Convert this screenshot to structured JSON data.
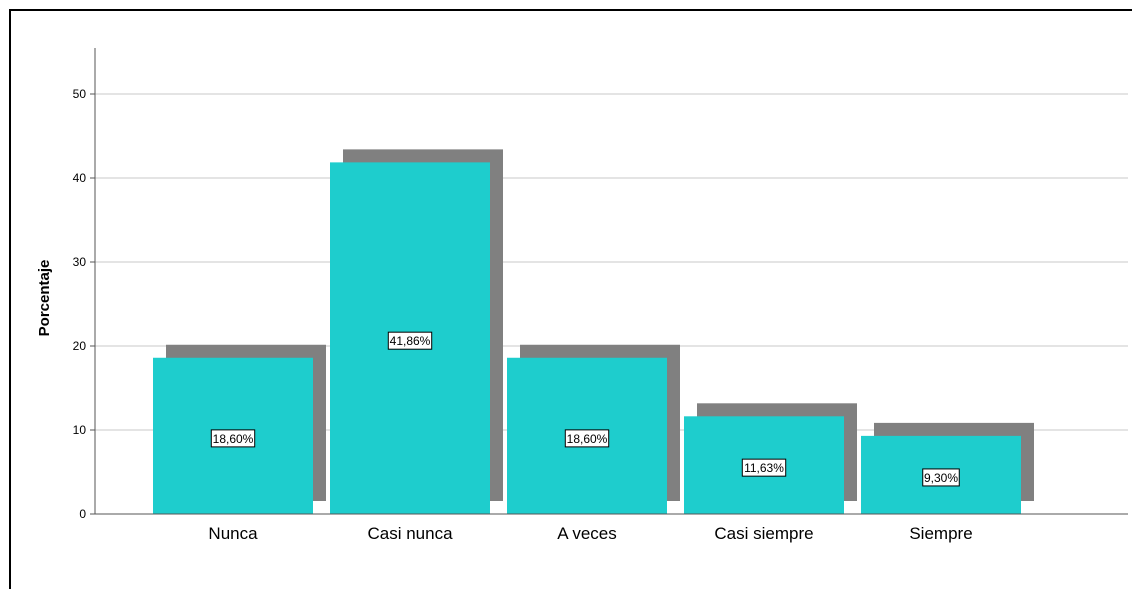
{
  "chart_data": {
    "type": "bar",
    "title": "",
    "xlabel": "",
    "ylabel": "Porcentaje",
    "ylim": [
      0,
      55
    ],
    "yticks": [
      0,
      10,
      20,
      30,
      40,
      50
    ],
    "grid": true,
    "style": "3d-shadow",
    "categories": [
      "Nunca",
      "Casi nunca",
      "A veces",
      "Casi siempre",
      "Siempre"
    ],
    "values": [
      18.6,
      41.86,
      18.6,
      11.63,
      9.3
    ],
    "value_labels": [
      "18,60%",
      "41,86%",
      "18,60%",
      "11,63%",
      "9,30%"
    ],
    "colors": {
      "bar": "#1ECDCD",
      "shadow": "#808080",
      "grid": "#C8C8C8",
      "axis": "#555555"
    }
  }
}
